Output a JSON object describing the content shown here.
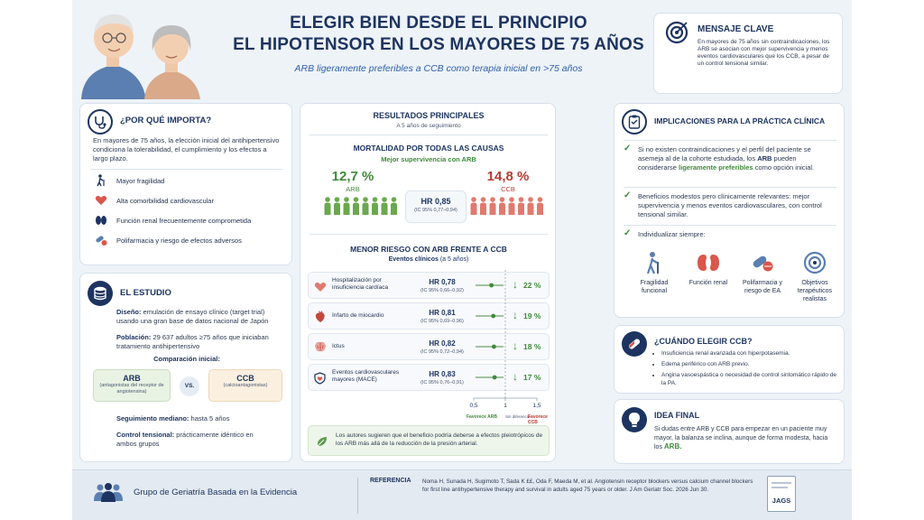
{
  "header": {
    "title_line1": "ELEGIR BIEN DESDE EL PRINCIPIO",
    "title_line2": "EL HIPOTENSOR EN LOS MAYORES DE 75 AÑOS",
    "subtitle": "ARB ligeramente preferibles a CCB como terapia inicial en >75 años"
  },
  "key_message": {
    "title": "MENSAJE CLAVE",
    "text": "En mayores de 75 años sin contraindicaciones, los ARB se asocian con mejor supervivencia y menos eventos cardiovasculares que los CCB, a pesar de un control tensional similar."
  },
  "why": {
    "title": "¿POR QUÉ IMPORTA?",
    "text": "En mayores de 75 años, la elección inicial del antihipertensivo condiciona la tolerabilidad, el cumplimiento y los efectos a largo plazo.",
    "items": [
      "Mayor fragilidad",
      "Alta comorbilidad cardiovascular",
      "Función renal frecuentemente comprometida",
      "Polifarmacia y riesgo de efectos adversos"
    ]
  },
  "study": {
    "title": "EL ESTUDIO",
    "design_label": "Diseño:",
    "design_text": "emulación de ensayo clínico (target trial) usando una gran base de datos nacional de Japón",
    "population_label": "Población:",
    "population_text": "29 637 adultos ≥75 años que iniciaban tratamiento antihipertensivo",
    "comparison_label": "Comparación inicial:",
    "arb": {
      "name": "ARB",
      "desc": "(antagonistas del receptor de angiotensina)"
    },
    "vs": "VS.",
    "ccb": {
      "name": "CCB",
      "desc": "(calcioantagonistas)"
    },
    "followup_label": "Seguimiento mediano:",
    "followup_text": "hasta 5 años",
    "bp_label": "Control tensional:",
    "bp_text": "prácticamente idéntico en ambos grupos"
  },
  "results": {
    "title": "RESULTADOS PRINCIPALES",
    "subtitle": "A 5 años de seguimiento",
    "mortality_title": "MORTALIDAD POR TODAS LAS CAUSAS",
    "mortality_sub": "Mejor supervivencia con ARB",
    "arb_pct": "12,7 %",
    "arb_label": "ARB",
    "ccb_pct": "14,8 %",
    "ccb_label": "CCB",
    "hr": "HR 0,85",
    "hr_ci": "(IC 95% 0,77–0,94)",
    "risk_title": "MENOR RIESGO CON ARB FRENTE A CCB",
    "risk_sub_bold": "Eventos clínicos",
    "risk_sub_rest": "(a 5 años)",
    "rows": [
      {
        "label": "Hospitalización por insuficiencia cardíaca",
        "hr": "HR 0,78",
        "ci": "(IC 95% 0,66–0,92)",
        "pct": "22 %",
        "hr_value": 0.78
      },
      {
        "label": "Infarto de miocardio",
        "hr": "HR 0,81",
        "ci": "(IC 95% 0,69–0,96)",
        "pct": "19 %",
        "hr_value": 0.81
      },
      {
        "label": "Ictus",
        "hr": "HR 0,82",
        "ci": "(IC 95% 0,72–0,94)",
        "pct": "18 %",
        "hr_value": 0.82
      },
      {
        "label": "Eventos cardiovasculares mayores (MACE)",
        "hr": "HR 0,83",
        "ci": "(IC 95% 0,76–0,91)",
        "pct": "17 %",
        "hr_value": 0.83
      }
    ],
    "axis_ticks": [
      "0,5",
      "1",
      "1,5"
    ],
    "axis_left": "Favorece ARB",
    "axis_mid": "Sin diferencia",
    "axis_right": "Favorece CCB",
    "note": "Los autores sugieren que el beneficio podría deberse a efectos pleiotrópicos de los ARB más allá de la reducción de la presión arterial."
  },
  "implications": {
    "title": "IMPLICACIONES PARA LA PRÁCTICA CLÍNICA",
    "p1_a": "Si no existen contraindicaciones y el perfil del paciente se asemeja al de la cohorte estudiada, los",
    "p1_b": "ARB",
    "p1_c": "pueden considerarse",
    "p1_d": "ligeramente preferibles",
    "p1_e": "como opción inicial.",
    "p2": "Beneficios modestos pero clínicamente relevantes: mejor supervivencia y menos eventos cardiovasculares, con control tensional similar.",
    "p3": "Individualizar siempre:",
    "items": [
      "Fragilidad funcional",
      "Función renal",
      "Polifarmacia y riesgo de EA",
      "Objetivos terapéuticos realistas"
    ]
  },
  "when_ccb": {
    "title": "¿CUÁNDO ELEGIR CCB?",
    "items": [
      "Insuficiencia renal avanzada con hiperpotasemia.",
      "Edema periférico con ARB previo.",
      "Angina vasoespástica o necesidad de control sintomático rápido de la PA."
    ]
  },
  "final": {
    "title": "IDEA FINAL",
    "text": "Si dudas entre ARB y CCB para empezar en un paciente muy mayor, la balanza se inclina, aunque de forma modesta, hacia los",
    "arb": "ARB."
  },
  "footer": {
    "group": "Grupo de Geriatría Basada en la Evidencia",
    "ref_label": "REFERENCIA",
    "ref_text": "Noma H, Sunada H, Sugimoto T, Sada K ££, Oda F, Maeda M, et al. Angiotensin receptor blockers versus calcium channel blockers for first line antihypertensive therapy and survival in adults aged 75 years or older. J Am Geriatr Soc. 2026 Jun 30.",
    "journal": "JAGS"
  },
  "colors": {
    "navy": "#1d3461",
    "green": "#3f8a3a",
    "red": "#b63c32",
    "figure_green": "#6aa84f",
    "figure_red": "#e07a6e"
  },
  "icons": [
    "stethoscope-icon",
    "target-icon",
    "database-icon",
    "clipboard-icon",
    "pills-icon",
    "lightbulb-icon",
    "leaf-icon",
    "people-icon",
    "journal-icon"
  ]
}
